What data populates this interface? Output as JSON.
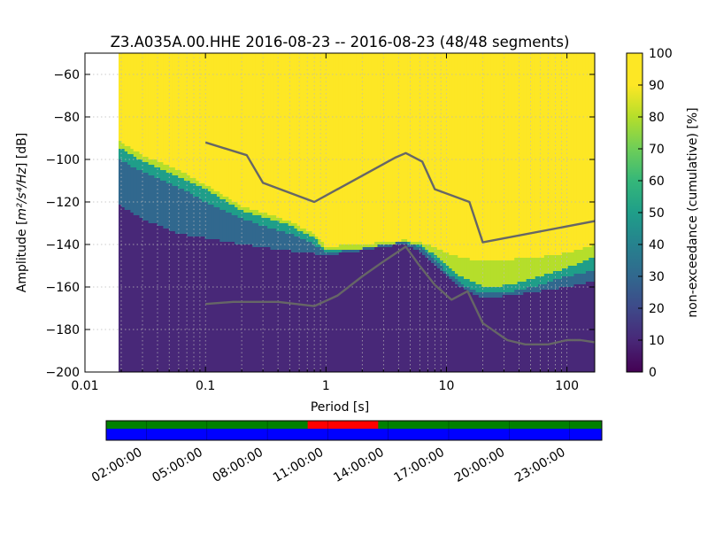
{
  "chart_data": {
    "type": "heatmap",
    "title": "Z3.A035A.00.HHE   2016-08-23 -- 2016-08-23  (48/48 segments)",
    "xlabel": "Period [s]",
    "ylabel_prefix": "Amplitude [",
    "ylabel_unit": "m²/s⁴/Hz",
    "ylabel_suffix": "] [dB]",
    "x_scale": "log",
    "xlim": [
      0.01,
      170
    ],
    "ylim": [
      -200,
      -50
    ],
    "x_ticks": [
      0.01,
      0.1,
      1,
      10,
      100
    ],
    "x_tick_labels": [
      "0.01",
      "0.1",
      "1",
      "10",
      "100"
    ],
    "y_ticks": [
      -200,
      -180,
      -160,
      -140,
      -120,
      -100,
      -80,
      -60
    ],
    "y_tick_labels": [
      "−200",
      "−180",
      "−160",
      "−140",
      "−120",
      "−100",
      "−80",
      "−60"
    ],
    "grid": true,
    "data_x_start": 0.019,
    "colorbar": {
      "label": "non-exceedance (cumulative) [%]",
      "range": [
        0,
        100
      ],
      "ticks": [
        0,
        10,
        20,
        30,
        40,
        50,
        60,
        70,
        80,
        90,
        100
      ],
      "colors": [
        "#440154",
        "#482878",
        "#3e4989",
        "#31688e",
        "#26828e",
        "#1f9e89",
        "#35b779",
        "#6ece58",
        "#b5de2b",
        "#fde725"
      ]
    },
    "boundary_curves": {
      "comment_free": true,
      "b10": [
        [
          0.019,
          -121
        ],
        [
          0.03,
          -128
        ],
        [
          0.06,
          -135
        ],
        [
          0.1,
          -137
        ],
        [
          0.2,
          -140
        ],
        [
          0.5,
          -143
        ],
        [
          1,
          -145
        ],
        [
          2,
          -143
        ],
        [
          3,
          -141
        ],
        [
          4.5,
          -140
        ],
        [
          6,
          -143
        ],
        [
          8,
          -150
        ],
        [
          10,
          -155
        ],
        [
          13,
          -160
        ],
        [
          16,
          -163
        ],
        [
          20,
          -165
        ],
        [
          35,
          -164
        ],
        [
          60,
          -162
        ],
        [
          100,
          -160
        ],
        [
          170,
          -157
        ]
      ],
      "b30": [
        [
          0.019,
          -100
        ],
        [
          0.03,
          -106
        ],
        [
          0.06,
          -113
        ],
        [
          0.1,
          -120
        ],
        [
          0.2,
          -128
        ],
        [
          0.5,
          -135
        ],
        [
          0.8,
          -140
        ],
        [
          1,
          -144
        ],
        [
          2,
          -142
        ],
        [
          3,
          -140
        ],
        [
          4.5,
          -139
        ],
        [
          6,
          -141
        ],
        [
          8,
          -147
        ],
        [
          10,
          -153
        ],
        [
          13,
          -158
        ],
        [
          16,
          -161
        ],
        [
          20,
          -163
        ],
        [
          35,
          -162
        ],
        [
          60,
          -159
        ],
        [
          100,
          -155
        ],
        [
          170,
          -152
        ]
      ],
      "b70": [
        [
          0.019,
          -94
        ],
        [
          0.03,
          -101
        ],
        [
          0.06,
          -108
        ],
        [
          0.1,
          -114
        ],
        [
          0.2,
          -124
        ],
        [
          0.5,
          -131
        ],
        [
          0.8,
          -137
        ],
        [
          1,
          -143
        ],
        [
          2,
          -142
        ],
        [
          3,
          -140
        ],
        [
          4.5,
          -139
        ],
        [
          6,
          -140
        ],
        [
          8,
          -145
        ],
        [
          10,
          -150
        ],
        [
          13,
          -155
        ],
        [
          16,
          -157
        ],
        [
          20,
          -160
        ],
        [
          35,
          -159
        ],
        [
          60,
          -155
        ],
        [
          100,
          -151
        ],
        [
          170,
          -146
        ]
      ],
      "b90": [
        [
          0.019,
          -91
        ],
        [
          0.03,
          -98
        ],
        [
          0.06,
          -105
        ],
        [
          0.1,
          -112
        ],
        [
          0.2,
          -122
        ],
        [
          0.5,
          -129
        ],
        [
          0.8,
          -135
        ],
        [
          1,
          -141
        ],
        [
          2,
          -140
        ],
        [
          3,
          -139
        ],
        [
          4.5,
          -138
        ],
        [
          6,
          -139
        ],
        [
          8,
          -141
        ],
        [
          10,
          -144
        ],
        [
          13,
          -146
        ],
        [
          16,
          -147
        ],
        [
          20,
          -147
        ],
        [
          35,
          -147
        ],
        [
          60,
          -146
        ],
        [
          100,
          -144
        ],
        [
          170,
          -140
        ]
      ]
    },
    "series": [
      {
        "x": [
          0.1,
          0.22,
          0.3,
          0.8,
          3.8,
          4.6,
          6.3,
          8,
          15.5,
          20,
          170
        ],
        "y": [
          -92,
          -98,
          -111,
          -120,
          -99,
          -97,
          -101,
          -114,
          -120,
          -139,
          -129
        ]
      },
      {
        "x": [
          0.1,
          0.17,
          0.4,
          0.8,
          1.25,
          2,
          3,
          4.6,
          5.8,
          8,
          11,
          15,
          20,
          32,
          45,
          70,
          100,
          130,
          170
        ],
        "y": [
          -168,
          -167,
          -167,
          -169,
          -164,
          -155,
          -148,
          -141,
          -149,
          -159,
          -166,
          -162,
          -177,
          -185,
          -187,
          -187,
          -185,
          -185,
          -186
        ]
      }
    ],
    "curve_color": "#666666",
    "time_axis": {
      "tick_labels": [
        "02:00:00",
        "05:00:00",
        "08:00:00",
        "11:00:00",
        "14:00:00",
        "17:00:00",
        "20:00:00",
        "23:00:00"
      ],
      "tick_hours": [
        2,
        5,
        8,
        11,
        14,
        17,
        20,
        23
      ],
      "range_hours": [
        0,
        24.6
      ],
      "top_bar_color": "#008000",
      "top_bar_highlight_color": "#ff0000",
      "top_bar_highlight_hours": [
        10,
        13.5
      ],
      "bottom_bar_color": "#0000ff"
    }
  }
}
